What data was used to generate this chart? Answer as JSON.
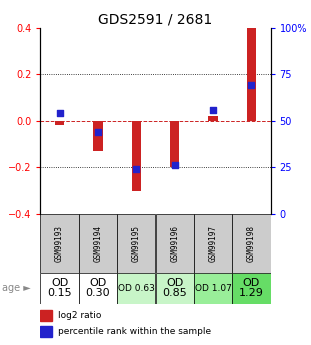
{
  "title": "GDS2591 / 2681",
  "samples": [
    "GSM99193",
    "GSM99194",
    "GSM99195",
    "GSM99196",
    "GSM99197",
    "GSM99198"
  ],
  "log2_ratio": [
    -0.02,
    -0.13,
    -0.3,
    -0.2,
    0.02,
    0.4
  ],
  "percentile_rank": [
    54,
    44,
    24,
    26,
    56,
    69
  ],
  "age_labels": [
    "OD\n0.15",
    "OD\n0.30",
    "OD 0.63",
    "OD\n0.85",
    "OD 1.07",
    "OD\n1.29"
  ],
  "age_bg_colors": [
    "#ffffff",
    "#ffffff",
    "#c8f5c8",
    "#c8f5c8",
    "#99ee99",
    "#66dd66"
  ],
  "age_fontsize": [
    8,
    8,
    6.5,
    8,
    6.5,
    8
  ],
  "ylim": [
    -0.4,
    0.4
  ],
  "yticks_left": [
    -0.4,
    -0.2,
    0.0,
    0.2,
    0.4
  ],
  "bar_color": "#cc2222",
  "dot_color": "#2222cc",
  "zero_line_color": "#cc2222",
  "header_bg": "#cccccc",
  "title_fontsize": 10,
  "bar_width": 0.25
}
